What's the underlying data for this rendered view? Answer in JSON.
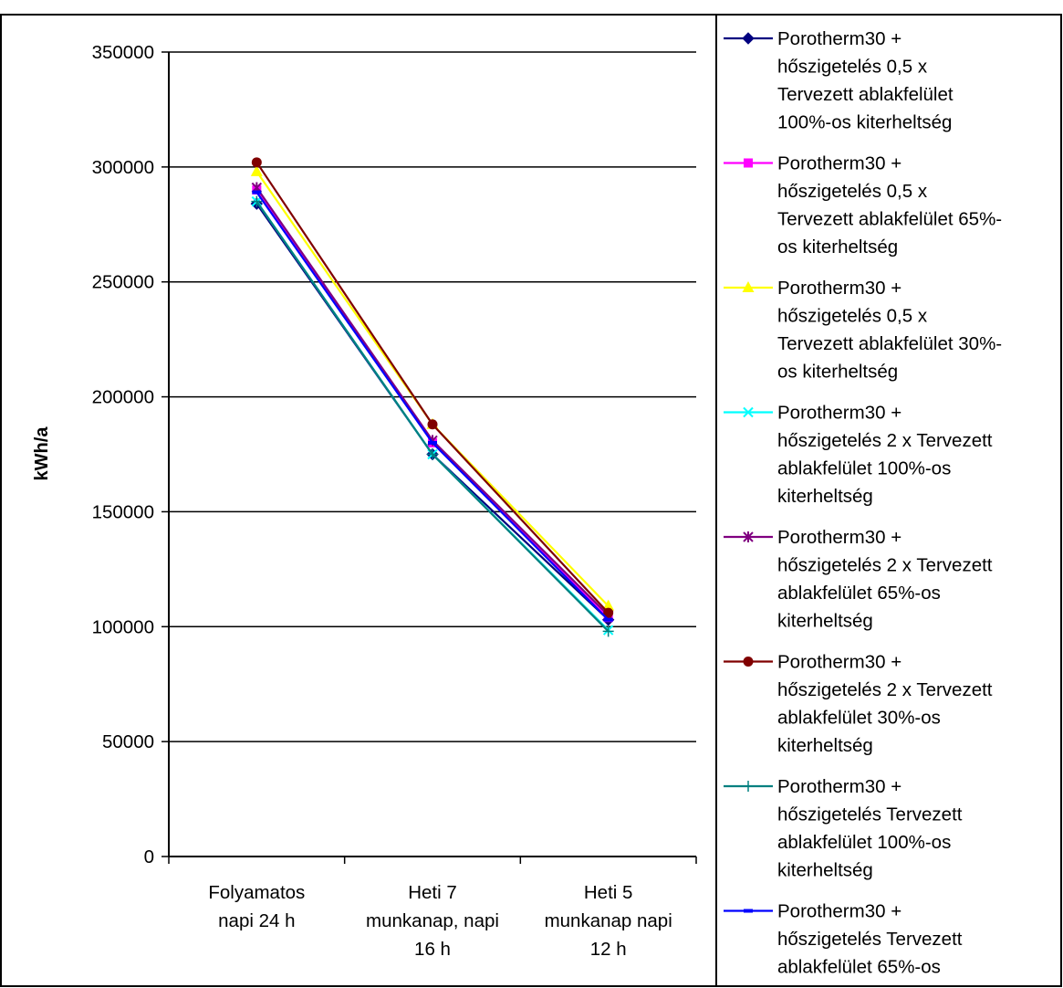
{
  "chart_data": {
    "type": "line",
    "title": "",
    "xlabel": "",
    "ylabel": "kWh/a",
    "ylim": [
      0,
      350000
    ],
    "yticks": [
      "0",
      "50000",
      "100000",
      "150000",
      "200000",
      "250000",
      "300000",
      "350000"
    ],
    "categories": [
      [
        "Folyamatos",
        "napi 24 h"
      ],
      [
        "Heti 7",
        "munkanap, napi",
        "16 h"
      ],
      [
        "Heti 5",
        "munkanap napi",
        "12 h"
      ]
    ],
    "grid": true,
    "legend_position": "right",
    "series": [
      {
        "name": "Porotherm30 + hőszigetelés 0,5 x Tervezett ablakfelület 100%-os kiterheltség",
        "legend_lines": [
          "Porotherm30 +",
          "hőszigetelés 0,5 x",
          "Tervezett ablakfelület",
          "100%-os kiterheltség"
        ],
        "values": [
          284000,
          175000,
          103000
        ],
        "color": "#000080",
        "marker": "diamond"
      },
      {
        "name": "Porotherm30 + hőszigetelés 0,5 x Tervezett ablakfelület 65%-os kiterheltség",
        "legend_lines": [
          "Porotherm30 +",
          "hőszigetelés 0,5 x",
          "Tervezett ablakfelület 65%-",
          "os kiterheltség"
        ],
        "values": [
          290000,
          180000,
          104000
        ],
        "color": "#FF00FF",
        "marker": "square"
      },
      {
        "name": "Porotherm30 + hőszigetelés 0,5 x Tervezett ablakfelület 30%-os kiterheltség",
        "legend_lines": [
          "Porotherm30 +",
          "hőszigetelés 0,5 x",
          "Tervezett ablakfelület 30%-",
          "os kiterheltség"
        ],
        "values": [
          298000,
          188000,
          109000
        ],
        "color": "#FFFF00",
        "marker": "triangle"
      },
      {
        "name": "Porotherm30 + hőszigetelés 2 x Tervezett ablakfelület 100%-os kiterheltség",
        "legend_lines": [
          "Porotherm30 +",
          "hőszigetelés 2 x Tervezett",
          "ablakfelület 100%-os",
          "kiterheltség"
        ],
        "values": [
          285000,
          175000,
          98500
        ],
        "color": "#00FFFF",
        "marker": "x"
      },
      {
        "name": "Porotherm30 + hőszigetelés 2 x Tervezett ablakfelület 65%-os kiterheltség",
        "legend_lines": [
          "Porotherm30 +",
          "hőszigetelés 2 x Tervezett",
          "ablakfelület 65%-os",
          "kiterheltség"
        ],
        "values": [
          291000,
          181000,
          105000
        ],
        "color": "#800080",
        "marker": "star"
      },
      {
        "name": "Porotherm30 + hőszigetelés 2 x Tervezett ablakfelület 30%-os kiterheltség",
        "legend_lines": [
          "Porotherm30 +",
          "hőszigetelés 2 x Tervezett",
          "ablakfelület 30%-os",
          "kiterheltség"
        ],
        "values": [
          302000,
          188000,
          106000
        ],
        "color": "#800000",
        "marker": "circle"
      },
      {
        "name": "Porotherm30 + hőszigetelés Tervezett ablakfelület 100%-os kiterheltség",
        "legend_lines": [
          "Porotherm30 +",
          "hőszigetelés Tervezett",
          "ablakfelület 100%-os",
          "kiterheltség"
        ],
        "values": [
          285000,
          175000,
          98000
        ],
        "color": "#008080",
        "marker": "plus"
      },
      {
        "name": "Porotherm30 + hőszigetelés Tervezett ablakfelület 65%-os",
        "legend_lines": [
          "Porotherm30 +",
          "hőszigetelés Tervezett",
          "ablakfelület 65%-os"
        ],
        "values": [
          289000,
          180000,
          103000
        ],
        "color": "#0000FF",
        "marker": "dash"
      }
    ]
  }
}
